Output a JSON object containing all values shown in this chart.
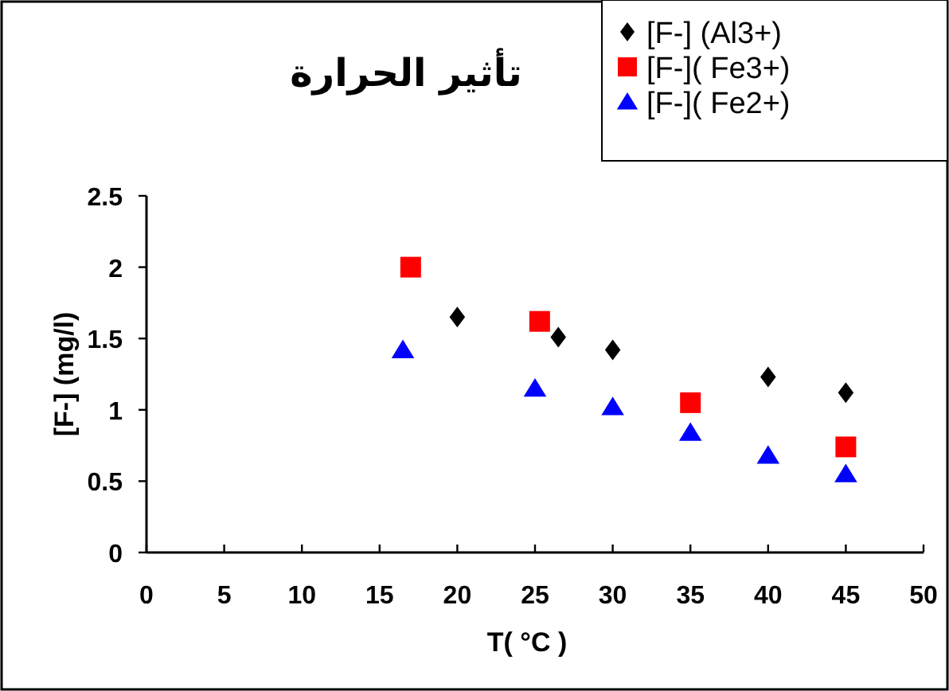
{
  "chart_data": {
    "type": "scatter",
    "title": "تأثير الحرارة",
    "xlabel": "T( °C )",
    "ylabel": "[F-] (mg/l)",
    "xlim": [
      0,
      50
    ],
    "ylim": [
      0,
      2.5
    ],
    "xticks": [
      0,
      5,
      10,
      15,
      20,
      25,
      30,
      35,
      40,
      45,
      50
    ],
    "yticks": [
      0,
      0.5,
      1,
      1.5,
      2,
      2.5
    ],
    "grid": false,
    "legend": "top right",
    "series": [
      {
        "name": "[F-] (Al3+)",
        "color": "#000000",
        "marker": "diamond",
        "x": [
          20,
          26.5,
          30,
          40,
          45
        ],
        "values": [
          1.65,
          1.51,
          1.42,
          1.23,
          1.12
        ]
      },
      {
        "name": "[F-]( Fe3+)",
        "color": "#ff0000",
        "marker": "square",
        "x": [
          17,
          25.3,
          35,
          45
        ],
        "values": [
          2.0,
          1.62,
          1.05,
          0.74
        ]
      },
      {
        "name": "[F-]( Fe2+)",
        "color": "#0000ff",
        "marker": "triangle",
        "x": [
          16.5,
          25,
          30,
          35,
          40,
          45
        ],
        "values": [
          1.42,
          1.15,
          1.02,
          0.84,
          0.68,
          0.55
        ]
      }
    ]
  }
}
